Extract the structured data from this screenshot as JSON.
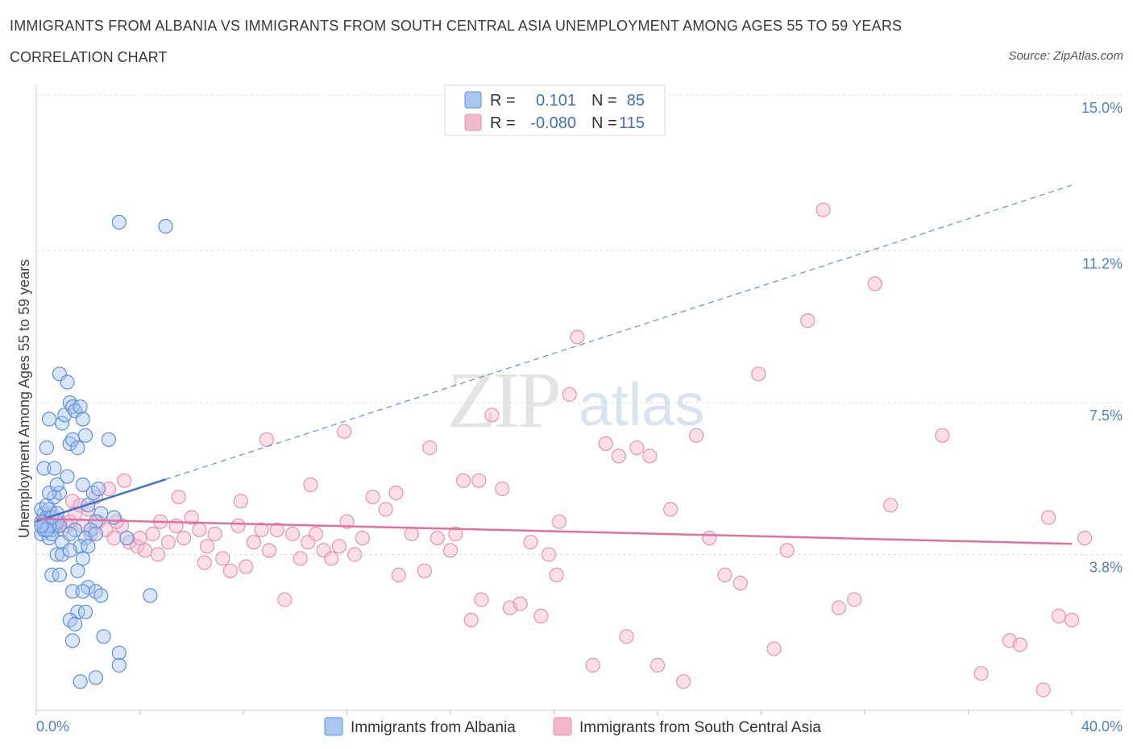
{
  "header": {
    "title": "IMMIGRANTS FROM ALBANIA VS IMMIGRANTS FROM SOUTH CENTRAL ASIA UNEMPLOYMENT AMONG AGES 55 TO 59 YEARS",
    "subtitle": "CORRELATION CHART",
    "source": "Source: ZipAtlas.com"
  },
  "watermark": {
    "zip": "ZIP",
    "atlas": "atlas"
  },
  "colors": {
    "albania_fill": "#a8c8f0",
    "albania_stroke": "#5b8fd8",
    "albania_line": "#3a74d0",
    "sca_fill": "#f4b8cc",
    "sca_stroke": "#e892b0",
    "sca_line": "#e46f9c",
    "tick_label": "#4a7fd0"
  },
  "legend": {
    "rows": [
      {
        "r_label": "R =",
        "r_value": "0.101",
        "n_label": "N =",
        "n_value": "85"
      },
      {
        "r_label": "R =",
        "r_value": "-0.080",
        "n_label": "N =",
        "n_value": "115"
      }
    ]
  },
  "bottom_legend": [
    "Immigrants from Albania",
    "Immigrants from South Central Asia"
  ],
  "chart_data": {
    "type": "scatter",
    "title": "IMMIGRANTS FROM ALBANIA VS IMMIGRANTS FROM SOUTH CENTRAL ASIA UNEMPLOYMENT AMONG AGES 55 TO 59 YEARS",
    "xlabel": "",
    "ylabel": "Unemployment Among Ages 55 to 59 years",
    "xlim": [
      0,
      40
    ],
    "ylim": [
      0,
      15
    ],
    "x_tick_labels": [
      "0.0%",
      "40.0%"
    ],
    "y_ticks": [
      {
        "value": 3.8,
        "label": "3.8%"
      },
      {
        "value": 7.5,
        "label": "7.5%"
      },
      {
        "value": 11.2,
        "label": "11.2%"
      },
      {
        "value": 15.0,
        "label": "15.0%"
      }
    ],
    "series": [
      {
        "name": "Immigrants from Albania",
        "R": 0.101,
        "N": 85,
        "trend": {
          "x": [
            0,
            5.0
          ],
          "y": [
            4.61,
            5.63
          ],
          "extended_dashed_to": [
            40,
            12.8
          ]
        },
        "points": [
          [
            0.2,
            4.3
          ],
          [
            0.3,
            4.5
          ],
          [
            0.4,
            4.6
          ],
          [
            0.5,
            4.2
          ],
          [
            0.3,
            4.8
          ],
          [
            0.2,
            4.9
          ],
          [
            0.6,
            4.4
          ],
          [
            0.4,
            4.7
          ],
          [
            0.7,
            4.5
          ],
          [
            0.5,
            4.9
          ],
          [
            0.8,
            4.6
          ],
          [
            0.3,
            4.4
          ],
          [
            0.6,
            4.3
          ],
          [
            0.9,
            4.5
          ],
          [
            0.2,
            4.6
          ],
          [
            0.4,
            5.0
          ],
          [
            0.7,
            5.2
          ],
          [
            0.9,
            5.3
          ],
          [
            0.5,
            5.3
          ],
          [
            0.8,
            5.5
          ],
          [
            0.3,
            5.9
          ],
          [
            0.7,
            5.9
          ],
          [
            1.2,
            5.7
          ],
          [
            0.4,
            6.4
          ],
          [
            1.3,
            6.5
          ],
          [
            0.5,
            7.1
          ],
          [
            1.0,
            7.0
          ],
          [
            1.1,
            7.2
          ],
          [
            1.3,
            7.5
          ],
          [
            1.4,
            7.4
          ],
          [
            1.5,
            7.3
          ],
          [
            1.7,
            7.4
          ],
          [
            1.8,
            7.1
          ],
          [
            1.4,
            6.6
          ],
          [
            1.6,
            6.4
          ],
          [
            1.9,
            6.7
          ],
          [
            2.8,
            6.6
          ],
          [
            0.9,
            8.2
          ],
          [
            1.2,
            8.0
          ],
          [
            3.2,
            11.9
          ],
          [
            5.0,
            11.8
          ],
          [
            1.8,
            5.5
          ],
          [
            2.0,
            5.0
          ],
          [
            2.2,
            5.3
          ],
          [
            2.4,
            5.4
          ],
          [
            2.5,
            4.8
          ],
          [
            2.3,
            4.6
          ],
          [
            2.1,
            4.4
          ],
          [
            1.9,
            4.2
          ],
          [
            1.5,
            4.4
          ],
          [
            1.0,
            4.1
          ],
          [
            1.3,
            4.3
          ],
          [
            1.7,
            4.0
          ],
          [
            2.0,
            4.0
          ],
          [
            2.3,
            4.3
          ],
          [
            3.0,
            4.7
          ],
          [
            3.5,
            4.2
          ],
          [
            0.8,
            3.8
          ],
          [
            1.0,
            3.8
          ],
          [
            1.3,
            3.9
          ],
          [
            1.8,
            3.7
          ],
          [
            0.6,
            3.3
          ],
          [
            0.9,
            3.3
          ],
          [
            1.6,
            3.4
          ],
          [
            2.0,
            3.0
          ],
          [
            1.4,
            2.9
          ],
          [
            1.8,
            2.9
          ],
          [
            2.3,
            2.9
          ],
          [
            2.5,
            2.8
          ],
          [
            1.6,
            2.4
          ],
          [
            1.9,
            2.4
          ],
          [
            1.3,
            2.2
          ],
          [
            1.5,
            2.1
          ],
          [
            2.6,
            1.8
          ],
          [
            1.4,
            1.7
          ],
          [
            3.2,
            1.4
          ],
          [
            3.2,
            1.1
          ],
          [
            2.3,
            0.8
          ],
          [
            1.7,
            0.7
          ],
          [
            4.4,
            2.8
          ],
          [
            0.5,
            4.5
          ],
          [
            0.6,
            4.7
          ],
          [
            0.4,
            4.4
          ],
          [
            0.8,
            4.8
          ],
          [
            0.2,
            4.5
          ]
        ]
      },
      {
        "name": "Immigrants from South Central Asia",
        "R": -0.08,
        "N": 115,
        "trend": {
          "x": [
            0,
            40
          ],
          "y": [
            4.67,
            4.06
          ]
        },
        "points": [
          [
            0.3,
            4.6
          ],
          [
            0.5,
            4.7
          ],
          [
            0.8,
            4.5
          ],
          [
            1.0,
            4.4
          ],
          [
            1.3,
            4.6
          ],
          [
            1.5,
            4.8
          ],
          [
            1.8,
            4.5
          ],
          [
            2.1,
            4.3
          ],
          [
            2.4,
            4.6
          ],
          [
            2.7,
            4.4
          ],
          [
            3.0,
            4.2
          ],
          [
            3.3,
            4.5
          ],
          [
            3.6,
            4.1
          ],
          [
            3.9,
            4.0
          ],
          [
            4.2,
            3.9
          ],
          [
            4.5,
            4.3
          ],
          [
            4.8,
            4.6
          ],
          [
            5.1,
            4.1
          ],
          [
            5.4,
            4.5
          ],
          [
            5.7,
            4.2
          ],
          [
            6.0,
            4.7
          ],
          [
            6.3,
            4.4
          ],
          [
            6.6,
            4.0
          ],
          [
            6.9,
            4.3
          ],
          [
            7.2,
            3.7
          ],
          [
            7.5,
            3.4
          ],
          [
            7.8,
            4.5
          ],
          [
            8.1,
            3.5
          ],
          [
            8.4,
            4.1
          ],
          [
            8.7,
            4.4
          ],
          [
            9.0,
            3.9
          ],
          [
            9.3,
            4.4
          ],
          [
            9.6,
            2.7
          ],
          [
            9.9,
            4.3
          ],
          [
            10.2,
            3.7
          ],
          [
            10.5,
            4.1
          ],
          [
            10.8,
            4.3
          ],
          [
            11.1,
            3.9
          ],
          [
            11.4,
            3.7
          ],
          [
            11.7,
            4.0
          ],
          [
            12.0,
            4.6
          ],
          [
            12.3,
            3.8
          ],
          [
            12.6,
            4.2
          ],
          [
            13.0,
            5.2
          ],
          [
            13.5,
            4.9
          ],
          [
            14.0,
            3.3
          ],
          [
            14.5,
            4.3
          ],
          [
            15.0,
            3.4
          ],
          [
            15.5,
            4.2
          ],
          [
            16.0,
            3.9
          ],
          [
            16.5,
            5.6
          ],
          [
            16.8,
            2.2
          ],
          [
            17.2,
            2.7
          ],
          [
            17.6,
            7.2
          ],
          [
            18.0,
            5.4
          ],
          [
            18.3,
            2.5
          ],
          [
            18.7,
            2.6
          ],
          [
            19.1,
            4.1
          ],
          [
            19.5,
            2.3
          ],
          [
            19.8,
            3.8
          ],
          [
            20.1,
            3.3
          ],
          [
            20.6,
            7.7
          ],
          [
            20.9,
            9.1
          ],
          [
            21.5,
            1.1
          ],
          [
            22.0,
            6.5
          ],
          [
            22.5,
            6.2
          ],
          [
            22.8,
            1.8
          ],
          [
            23.2,
            6.4
          ],
          [
            23.7,
            6.2
          ],
          [
            24.0,
            1.1
          ],
          [
            24.5,
            4.9
          ],
          [
            25.0,
            0.7
          ],
          [
            25.5,
            6.7
          ],
          [
            26.0,
            4.2
          ],
          [
            26.6,
            3.3
          ],
          [
            27.2,
            3.1
          ],
          [
            27.9,
            8.2
          ],
          [
            28.5,
            1.5
          ],
          [
            29.0,
            3.9
          ],
          [
            29.8,
            9.5
          ],
          [
            30.4,
            12.2
          ],
          [
            31.0,
            2.5
          ],
          [
            31.6,
            2.7
          ],
          [
            32.4,
            10.4
          ],
          [
            33.0,
            5.0
          ],
          [
            35.0,
            6.7
          ],
          [
            37.6,
            1.7
          ],
          [
            38.0,
            1.6
          ],
          [
            39.5,
            2.3
          ],
          [
            40.0,
            2.2
          ],
          [
            36.5,
            0.9
          ],
          [
            38.9,
            0.5
          ],
          [
            39.1,
            4.7
          ],
          [
            40.5,
            4.2
          ],
          [
            0.6,
            4.8
          ],
          [
            0.9,
            4.6
          ],
          [
            1.2,
            4.5
          ],
          [
            1.4,
            5.1
          ],
          [
            1.7,
            5.0
          ],
          [
            2.0,
            4.9
          ],
          [
            2.3,
            5.2
          ],
          [
            2.8,
            5.4
          ],
          [
            3.1,
            4.6
          ],
          [
            3.4,
            5.6
          ],
          [
            4.0,
            4.2
          ],
          [
            4.7,
            3.8
          ],
          [
            5.5,
            5.2
          ],
          [
            6.5,
            3.6
          ],
          [
            7.9,
            5.1
          ],
          [
            8.9,
            6.6
          ],
          [
            10.6,
            5.5
          ],
          [
            11.9,
            6.8
          ],
          [
            13.9,
            5.3
          ],
          [
            15.2,
            6.4
          ],
          [
            17.1,
            5.6
          ],
          [
            16.2,
            4.3
          ],
          [
            20.2,
            4.6
          ]
        ]
      }
    ]
  }
}
